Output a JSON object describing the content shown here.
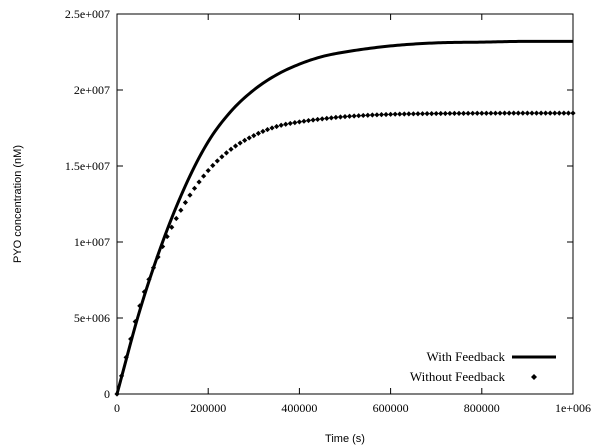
{
  "chart_data": {
    "type": "line",
    "title": "",
    "xlabel": "Time (s)",
    "ylabel": "PYO concentration (nM)",
    "xlim": [
      0,
      1000000
    ],
    "ylim": [
      0,
      25000000
    ],
    "x_ticks": [
      0,
      200000,
      400000,
      600000,
      800000,
      1000000
    ],
    "x_tick_labels": [
      "0",
      "200000",
      "400000",
      "600000",
      "800000",
      "1e+006"
    ],
    "y_ticks": [
      0,
      5000000,
      10000000,
      15000000,
      20000000,
      25000000
    ],
    "y_tick_labels": [
      "0",
      "5e+006",
      "1e+007",
      "1.5e+007",
      "2e+007",
      "2.5e+007"
    ],
    "grid": false,
    "legend_position": "bottom-right",
    "series": [
      {
        "name": "With Feedback",
        "style": "solid-line",
        "color": "#000000",
        "x": [
          0,
          50000,
          100000,
          150000,
          200000,
          250000,
          300000,
          350000,
          400000,
          450000,
          500000,
          600000,
          700000,
          800000,
          900000,
          1000000
        ],
        "y": [
          0,
          5500000,
          10000000,
          13700000,
          16600000,
          18600000,
          20000000,
          21000000,
          21700000,
          22200000,
          22500000,
          22900000,
          23100000,
          23150000,
          23200000,
          23200000
        ]
      },
      {
        "name": "Without Feedback",
        "style": "dots",
        "color": "#000000",
        "x": [
          0,
          50000,
          100000,
          150000,
          200000,
          250000,
          300000,
          350000,
          400000,
          450000,
          500000,
          600000,
          700000,
          800000,
          900000,
          1000000
        ],
        "y": [
          0,
          5800000,
          9700000,
          12600000,
          14700000,
          16100000,
          17000000,
          17600000,
          17900000,
          18100000,
          18250000,
          18400000,
          18450000,
          18470000,
          18480000,
          18480000
        ]
      }
    ]
  }
}
